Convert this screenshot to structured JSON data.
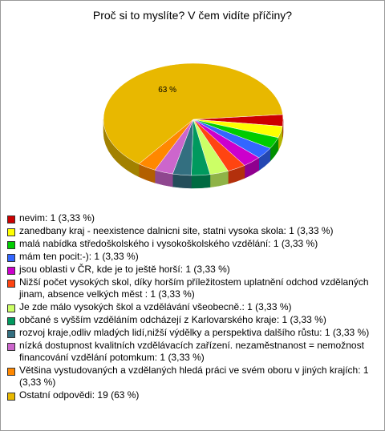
{
  "chart_data": {
    "type": "pie",
    "title": "Proč si to myslíte? V čem vidíte příčiny?",
    "categories": [
      "nevim: 1 (3,33 %)",
      "zanedbany kraj - neexistence dalnicni site, statni vysoka skola: 1 (3,33 %)",
      "malá nabídka středoškolského i vysokoškolského vzdělání: 1 (3,33 %)",
      "mám ten pocit:-): 1 (3,33 %)",
      "jsou oblasti v ČR, kde je to ještě horší: 1 (3,33 %)",
      "Nižší počet vysokých skol, díky horším příležitostem uplatnění odchod vzdělaných jinam, absence velkých měst : 1 (3,33 %)",
      "Je zde málo vysokých škol a vzdělávání všeobecně.: 1 (3,33 %)",
      "občané s vyšším vzděláním odcházejí z Karlovarského kraje: 1 (3,33 %)",
      "rozvoj kraje,odliv mladých lidí,nižší výdělky a perspektiva dalšího růstu: 1 (3,33 %)",
      "nízká dostupnost kvalitních vzdělávacích zařízení. nezaměstnanost = nemožnost financování vzdělání potomkum: 1 (3,33 %)",
      "Většina vystudovaných a vzdělaných hledá práci ve svém oboru v jiných krajích: 1 (3,33 %)",
      "Ostatní odpovědi: 19 (63 %)"
    ],
    "values": [
      3.33,
      3.33,
      3.33,
      3.33,
      3.33,
      3.33,
      3.33,
      3.33,
      3.33,
      3.33,
      3.33,
      63
    ],
    "value_labels": [
      null,
      null,
      null,
      null,
      null,
      null,
      null,
      null,
      null,
      null,
      null,
      "63 %"
    ],
    "colors": [
      "#cc0000",
      "#ffff00",
      "#00cc00",
      "#3366ff",
      "#cc00cc",
      "#ff4411",
      "#ccff66",
      "#00995e",
      "#336f80",
      "#cc66cc",
      "#ff8800",
      "#e8b800"
    ]
  }
}
